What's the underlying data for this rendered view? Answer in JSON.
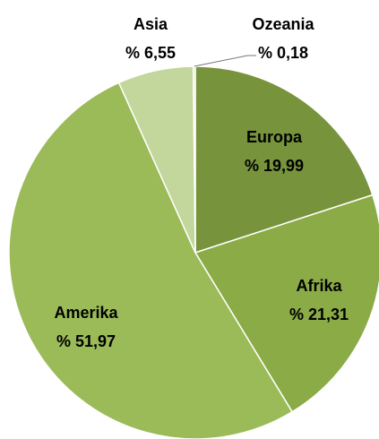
{
  "chart_data": {
    "type": "pie",
    "categories": [
      "Europa",
      "Afrika",
      "Amerika",
      "Asia",
      "Ozeania"
    ],
    "values": [
      19.99,
      21.31,
      51.97,
      6.55,
      0.18
    ],
    "value_labels": [
      "% 19,99",
      "% 21,31",
      "% 51,97",
      "% 6,55",
      "% 0,18"
    ],
    "colors": [
      "#77933c",
      "#8aab46",
      "#9bbb59",
      "#c3d69b",
      "#d7e4bd"
    ]
  }
}
